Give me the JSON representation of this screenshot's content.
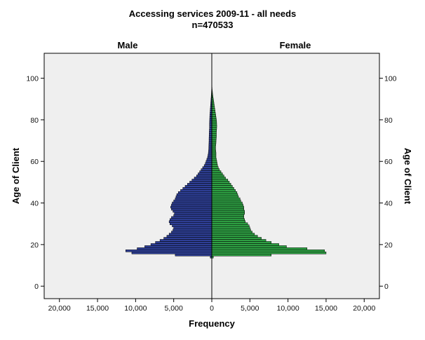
{
  "chart_data": {
    "type": "bar",
    "orientation": "horizontal-population-pyramid",
    "title": "Accessing services 2009-11 - all needs",
    "subtitle": "n=470533",
    "xlabel": "Frequency",
    "ylabel": "Age of Client",
    "ylabel_right": "Age of Client",
    "panel_labels": [
      "Male",
      "Female"
    ],
    "x_ticks": [
      "20,000",
      "15,000",
      "10,000",
      "5,000",
      "0",
      "5,000",
      "10,000",
      "15,000",
      "20,000"
    ],
    "y_ticks": [
      "0",
      "20",
      "40",
      "60",
      "80",
      "100"
    ],
    "xlim": [
      -22000,
      22000
    ],
    "ylim": [
      -6,
      112
    ],
    "grid": false,
    "legend": "none",
    "colors": {
      "Male": "#2e3f96",
      "Female": "#2ea043",
      "background": "#efefef"
    },
    "ages": [
      14,
      15,
      16,
      17,
      18,
      19,
      20,
      21,
      22,
      23,
      24,
      25,
      26,
      27,
      28,
      29,
      30,
      31,
      32,
      33,
      34,
      35,
      36,
      37,
      38,
      39,
      40,
      41,
      42,
      43,
      44,
      45,
      46,
      47,
      48,
      49,
      50,
      51,
      52,
      53,
      54,
      55,
      56,
      57,
      58,
      59,
      60,
      61,
      62,
      63,
      64,
      65,
      66,
      67,
      68,
      69,
      70,
      71,
      72,
      73,
      74,
      75,
      76,
      77,
      78,
      79,
      80,
      81,
      82,
      83,
      84,
      85,
      86,
      87,
      88,
      89,
      90,
      91,
      92,
      93,
      94,
      95,
      96,
      97,
      98,
      99,
      100
    ],
    "series": [
      {
        "name": "Male",
        "values": [
          200,
          4800,
          10500,
          11300,
          9800,
          8800,
          8000,
          7400,
          6800,
          6300,
          5900,
          5600,
          5300,
          5100,
          5000,
          5200,
          5500,
          5600,
          5500,
          5300,
          5000,
          4900,
          5100,
          5300,
          5400,
          5300,
          5200,
          5000,
          4800,
          4700,
          4600,
          4400,
          4100,
          3800,
          3500,
          3200,
          2900,
          2600,
          2300,
          2000,
          1800,
          1600,
          1400,
          1200,
          1000,
          850,
          750,
          650,
          550,
          500,
          450,
          420,
          400,
          390,
          380,
          370,
          360,
          360,
          350,
          340,
          330,
          320,
          300,
          300,
          300,
          290,
          280,
          270,
          260,
          240,
          220,
          200,
          180,
          160,
          140,
          120,
          100,
          80,
          60,
          45,
          30,
          20,
          12,
          8,
          5,
          3,
          2
        ]
      },
      {
        "name": "Female",
        "values": [
          200,
          7800,
          15000,
          14800,
          12500,
          9800,
          8800,
          7800,
          7100,
          6500,
          6000,
          5600,
          5300,
          5100,
          5000,
          4900,
          4700,
          4400,
          4300,
          4200,
          4200,
          4300,
          4300,
          4200,
          4200,
          4100,
          4000,
          3800,
          3700,
          3500,
          3400,
          3300,
          3100,
          2900,
          2700,
          2500,
          2300,
          2100,
          1800,
          1600,
          1400,
          1200,
          1000,
          850,
          750,
          700,
          650,
          600,
          550,
          550,
          550,
          520,
          500,
          500,
          520,
          550,
          560,
          580,
          600,
          600,
          600,
          620,
          640,
          650,
          640,
          630,
          600,
          560,
          520,
          480,
          440,
          400,
          360,
          320,
          280,
          240,
          200,
          160,
          120,
          90,
          60,
          40,
          25,
          15,
          8,
          5,
          3
        ]
      }
    ]
  }
}
